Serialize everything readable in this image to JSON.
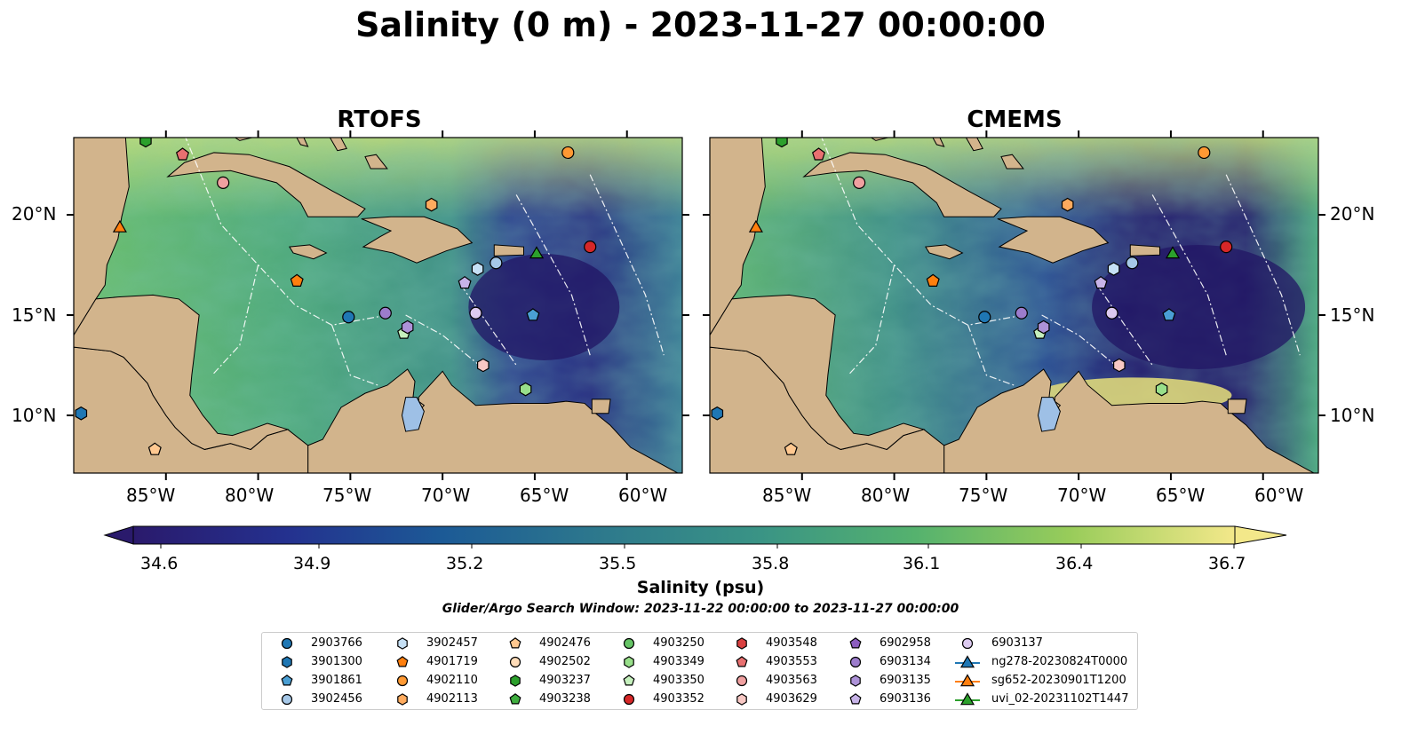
{
  "title": "Salinity (0 m) - 2023-11-27 00:00:00",
  "panels": [
    {
      "name": "RTOFS"
    },
    {
      "name": "CMEMS"
    }
  ],
  "axes": {
    "lat_ticks": [
      "20°N",
      "15°N",
      "10°N"
    ],
    "lon_ticks": [
      "85°W",
      "80°W",
      "75°W",
      "70°W",
      "65°W",
      "60°W"
    ]
  },
  "colorbar": {
    "label": "Salinity (psu)",
    "ticks": [
      "34.6",
      "34.9",
      "35.2",
      "35.5",
      "35.8",
      "36.1",
      "36.4",
      "36.7"
    ],
    "min": 34.6,
    "max": 36.7,
    "extend": "both"
  },
  "search_window": "Glider/Argo Search Window: 2023-11-22 00:00:00 to 2023-11-27 00:00:00",
  "colors": {
    "land": "#d2b48c",
    "lake": "#9ec0e6",
    "low_salinity": "#2b1a6e",
    "high_salinity": "#fbe98a"
  },
  "chart_data": {
    "type": "heatmap",
    "variable": "Salinity",
    "depth": "0 m",
    "time": "2023-11-27 00:00:00",
    "units": "psu",
    "value_range": [
      34.6,
      36.7
    ],
    "lon_range": [
      -90,
      -57
    ],
    "lat_range": [
      7,
      24
    ],
    "legend_location": "lower-center",
    "legend": [
      {
        "id": "2903766",
        "marker": "circle",
        "color": "#1f77b4"
      },
      {
        "id": "3901300",
        "marker": "hexagon",
        "color": "#1f77b4"
      },
      {
        "id": "3901861",
        "marker": "pentagon",
        "color": "#4a9fd4"
      },
      {
        "id": "3902456",
        "marker": "circle",
        "color": "#a6c8e8"
      },
      {
        "id": "3902457",
        "marker": "hexagon",
        "color": "#c6e0f5"
      },
      {
        "id": "4901719",
        "marker": "pentagon",
        "color": "#ff7f0e"
      },
      {
        "id": "4902110",
        "marker": "circle",
        "color": "#ff9933"
      },
      {
        "id": "4902113",
        "marker": "hexagon",
        "color": "#ffab5e"
      },
      {
        "id": "4902476",
        "marker": "pentagon",
        "color": "#ffc890"
      },
      {
        "id": "4902502",
        "marker": "circle",
        "color": "#ffdcb8"
      },
      {
        "id": "4903237",
        "marker": "hexagon",
        "color": "#2ca02c"
      },
      {
        "id": "4903238",
        "marker": "pentagon",
        "color": "#3fae3f"
      },
      {
        "id": "4903250",
        "marker": "circle",
        "color": "#66c466"
      },
      {
        "id": "4903349",
        "marker": "hexagon",
        "color": "#98df8a"
      },
      {
        "id": "4903350",
        "marker": "pentagon",
        "color": "#c5f0bd"
      },
      {
        "id": "4903352",
        "marker": "circle",
        "color": "#d62728"
      },
      {
        "id": "4903548",
        "marker": "hexagon",
        "color": "#d94040"
      },
      {
        "id": "4903553",
        "marker": "pentagon",
        "color": "#e87070"
      },
      {
        "id": "4903563",
        "marker": "circle",
        "color": "#f0a0a0"
      },
      {
        "id": "4903629",
        "marker": "hexagon",
        "color": "#f8c8c4"
      },
      {
        "id": "6902958",
        "marker": "pentagon",
        "color": "#8c5dbf"
      },
      {
        "id": "6903134",
        "marker": "circle",
        "color": "#9c7ccc"
      },
      {
        "id": "6903135",
        "marker": "hexagon",
        "color": "#ad92d8"
      },
      {
        "id": "6903136",
        "marker": "pentagon",
        "color": "#c7b3e8"
      },
      {
        "id": "6903137",
        "marker": "circle",
        "color": "#dccaf0"
      },
      {
        "id": "ng278-20230824T0000",
        "marker": "triangle",
        "color": "#1f77b4"
      },
      {
        "id": "sg652-20230901T1200",
        "marker": "triangle",
        "color": "#ff7f0e"
      },
      {
        "id": "uvi_02-20231102T1447",
        "marker": "triangle",
        "color": "#2ca02c"
      }
    ],
    "observations": [
      {
        "id": "2903766",
        "lon": -75.1,
        "lat": 14.9
      },
      {
        "id": "3901300",
        "lon": -89.6,
        "lat": 10.1
      },
      {
        "id": "3901861",
        "lon": -65.1,
        "lat": 15.0
      },
      {
        "id": "3902456",
        "lon": -67.1,
        "lat": 17.6
      },
      {
        "id": "3902457",
        "lon": -68.1,
        "lat": 17.3
      },
      {
        "id": "4901719",
        "lon": -77.9,
        "lat": 16.7
      },
      {
        "id": "4902110",
        "lon": -63.2,
        "lat": 23.1
      },
      {
        "id": "4902113",
        "lon": -70.6,
        "lat": 20.5
      },
      {
        "id": "4902476",
        "lon": -85.6,
        "lat": 8.3
      },
      {
        "id": "4903237",
        "lon": -86.1,
        "lat": 23.7
      },
      {
        "id": "4903349",
        "lon": -65.5,
        "lat": 11.3
      },
      {
        "id": "4903350",
        "lon": -72.1,
        "lat": 14.1
      },
      {
        "id": "4903352",
        "lon": -62.0,
        "lat": 18.4
      },
      {
        "id": "4903553",
        "lon": -84.1,
        "lat": 23.0
      },
      {
        "id": "4903563",
        "lon": -81.9,
        "lat": 21.6
      },
      {
        "id": "4903629",
        "lon": -67.8,
        "lat": 12.5
      },
      {
        "id": "6903134",
        "lon": -73.1,
        "lat": 15.1
      },
      {
        "id": "6903135",
        "lon": -71.9,
        "lat": 14.4
      },
      {
        "id": "6903136",
        "lon": -68.8,
        "lat": 16.6
      },
      {
        "id": "6903137",
        "lon": -68.2,
        "lat": 15.1
      },
      {
        "id": "sg652-20230901T1200",
        "lon": -87.5,
        "lat": 19.4
      },
      {
        "id": "uvi_02-20231102T1447",
        "lon": -64.9,
        "lat": 18.1
      }
    ]
  }
}
